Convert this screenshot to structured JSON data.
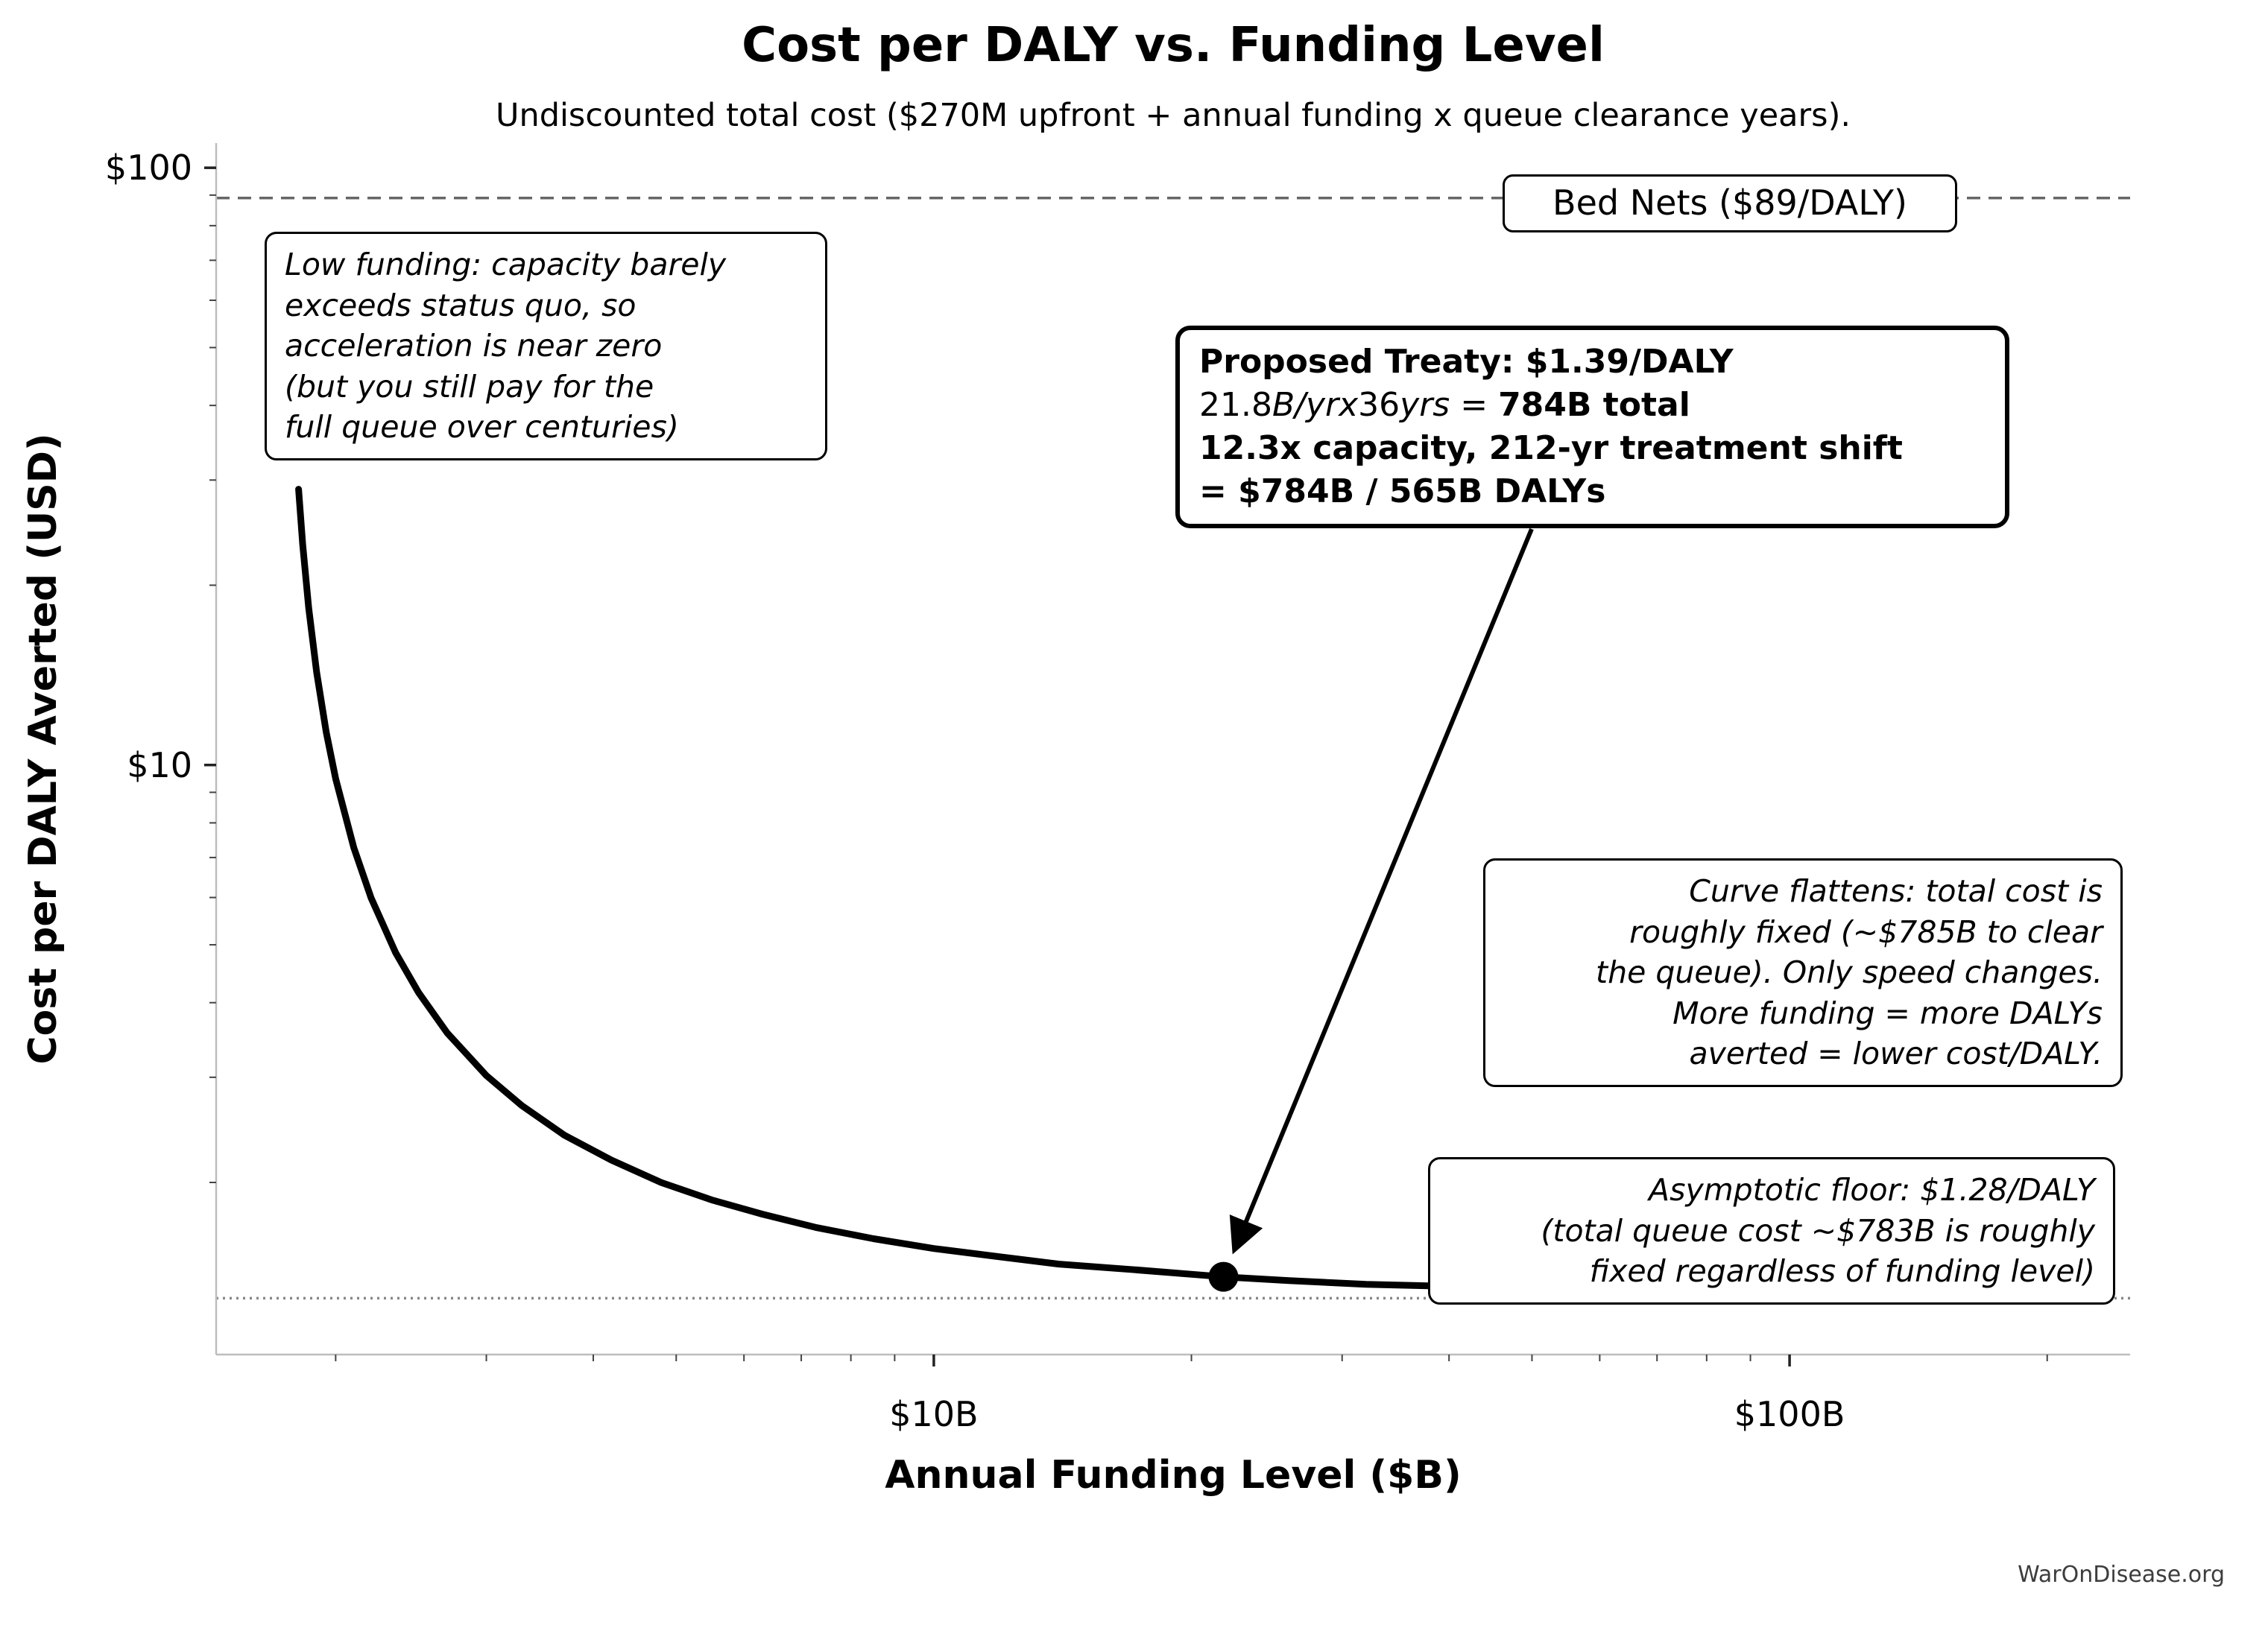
{
  "chart_data": {
    "type": "line",
    "title": "Cost per DALY vs. Funding Level",
    "subtitle": "Undiscounted total cost ($270M upfront + annual funding x queue clearance years).",
    "xlabel": "Annual Funding Level ($B)",
    "ylabel": "Cost per DALY Averted (USD)",
    "x_scale": "log",
    "y_scale": "log",
    "x_range": [
      1.45,
      250
    ],
    "y_range": [
      1.03,
      110
    ],
    "grid": false,
    "x_ticks": [
      {
        "v": 10,
        "label": "$10B"
      },
      {
        "v": 100,
        "label": "$100B"
      }
    ],
    "x_minor_ticks": [
      2,
      3,
      4,
      5,
      6,
      7,
      8,
      9,
      20,
      30,
      40,
      50,
      60,
      70,
      80,
      90,
      200
    ],
    "y_ticks": [
      {
        "v": 100,
        "label": "$100"
      },
      {
        "v": 10,
        "label": "$10"
      }
    ],
    "y_minor_ticks": [
      90,
      80,
      70,
      60,
      50,
      40,
      30,
      20,
      9,
      8,
      7,
      6,
      5,
      4,
      3,
      2
    ],
    "reference_lines": [
      {
        "id": "bed-nets",
        "y": 89,
        "style": "dashed",
        "color": "#666666",
        "label": "Bed Nets ($89/DALY)"
      },
      {
        "id": "asymptotic-floor",
        "y": 1.28,
        "style": "dotted",
        "color": "#888888"
      }
    ],
    "series": [
      {
        "name": "cost-per-daly-curve",
        "color": "#000000",
        "points": [
          [
            1.81,
            28.96
          ],
          [
            1.83,
            23.42
          ],
          [
            1.86,
            18.31
          ],
          [
            1.9,
            14.31
          ],
          [
            1.95,
            11.35
          ],
          [
            2.0,
            9.48
          ],
          [
            2.1,
            7.27
          ],
          [
            2.2,
            5.99
          ],
          [
            2.35,
            4.85
          ],
          [
            2.5,
            4.16
          ],
          [
            2.7,
            3.56
          ],
          [
            3.0,
            3.02
          ],
          [
            3.3,
            2.69
          ],
          [
            3.7,
            2.4
          ],
          [
            4.2,
            2.18
          ],
          [
            4.8,
            2.0
          ],
          [
            5.5,
            1.87
          ],
          [
            6.3,
            1.77
          ],
          [
            7.3,
            1.68
          ],
          [
            8.5,
            1.61
          ],
          [
            10,
            1.55
          ],
          [
            12,
            1.5
          ],
          [
            14,
            1.46
          ],
          [
            17,
            1.43
          ],
          [
            21.8,
            1.39
          ],
          [
            26,
            1.37
          ],
          [
            32,
            1.35
          ],
          [
            40,
            1.34
          ],
          [
            50,
            1.33
          ],
          [
            63,
            1.32
          ],
          [
            80,
            1.31
          ],
          [
            100,
            1.3
          ],
          [
            125,
            1.3
          ],
          [
            160,
            1.29
          ],
          [
            190,
            1.29
          ]
        ]
      }
    ],
    "marker": {
      "x": 21.8,
      "y": 1.39
    }
  },
  "annotations": {
    "low_funding": {
      "lines": [
        "Low funding: capacity barely",
        "exceeds status quo, so",
        "acceleration is near zero",
        "(but you still pay for the",
        "full queue over centuries)"
      ]
    },
    "treaty": {
      "line1": "Proposed Treaty: $1.39/DALY",
      "line2_tokens": [
        {
          "t": "21.8",
          "s": "n"
        },
        {
          "t": "B/yr",
          "s": "i"
        },
        {
          "t": "x",
          "s": "i"
        },
        {
          "t": "36",
          "s": "n"
        },
        {
          "t": "yrs",
          "s": "i"
        },
        {
          "t": " = ",
          "s": "n"
        },
        {
          "t": "784B total",
          "s": "b"
        }
      ],
      "line3": "12.3x capacity, 212-yr treatment shift",
      "line4": "= $784B / 565B DALYs"
    },
    "curve_flattens": {
      "lines": [
        "Curve flattens: total cost is",
        "roughly fixed (~$785B to clear",
        "the queue). Only speed changes.",
        "More funding = more DALYs",
        "averted = lower cost/DALY."
      ]
    },
    "asymptotic_floor": {
      "lines": [
        "Asymptotic floor: $1.28/DALY",
        "(total queue cost ~$783B is roughly",
        "fixed regardless of funding level)"
      ]
    },
    "bed_nets_label": "Bed Nets ($89/DALY)"
  },
  "footer": {
    "watermark": "WarOnDisease.org"
  }
}
